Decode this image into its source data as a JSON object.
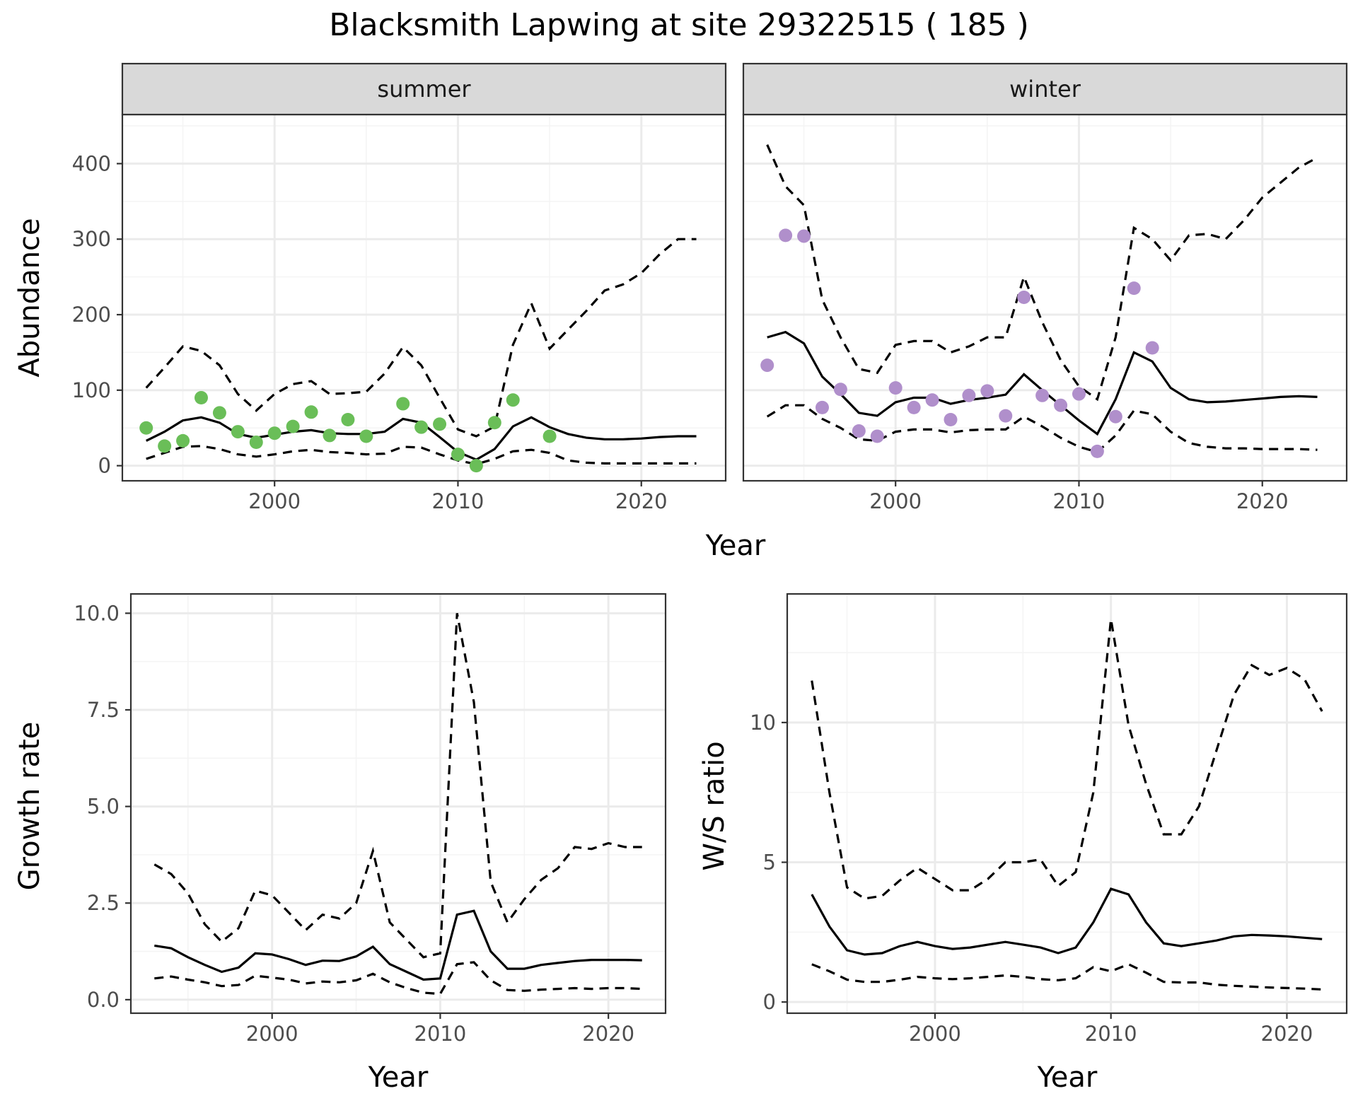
{
  "figure": {
    "title": "Blacksmith Lapwing at site 29322515 ( 185 )"
  },
  "colors": {
    "summer_points": "#6abe58",
    "winter_points": "#b08fcb",
    "lines": "#000000"
  },
  "chart_data": [
    {
      "id": "abundance",
      "type": "line",
      "facets": [
        "summer",
        "winter"
      ],
      "xlabel": "Year",
      "ylabel": "Abundance",
      "xlim": [
        1991.7,
        2024.6
      ],
      "ylim": [
        -20,
        465
      ],
      "x_ticks": [
        2000,
        2010,
        2020
      ],
      "y_ticks": [
        0,
        100,
        200,
        300,
        400
      ],
      "grid": true,
      "panels": [
        {
          "name": "summer",
          "x": [
            1993,
            1994,
            1995,
            1996,
            1997,
            1998,
            1999,
            2000,
            2001,
            2002,
            2003,
            2004,
            2005,
            2006,
            2007,
            2008,
            2009,
            2010,
            2011,
            2012,
            2013,
            2014,
            2015,
            2016,
            2017,
            2018,
            2019,
            2020,
            2021,
            2022,
            2023
          ],
          "estimate": [
            33,
            45,
            60,
            64,
            57,
            42,
            37,
            41,
            45,
            47,
            43,
            42,
            42,
            45,
            62,
            57,
            38,
            18,
            8,
            22,
            52,
            64,
            51,
            42,
            37,
            35,
            35,
            36,
            38,
            39,
            39
          ],
          "lower": [
            9,
            17,
            25,
            26,
            22,
            15,
            12,
            15,
            19,
            21,
            18,
            17,
            15,
            16,
            25,
            24,
            15,
            7,
            2,
            9,
            19,
            21,
            17,
            7,
            4,
            3,
            3,
            3,
            3,
            3,
            3
          ],
          "upper": [
            103,
            130,
            158,
            152,
            133,
            95,
            73,
            95,
            108,
            112,
            95,
            96,
            98,
            122,
            157,
            133,
            90,
            48,
            39,
            52,
            160,
            215,
            155,
            180,
            205,
            232,
            240,
            255,
            280,
            300,
            300
          ],
          "observed_x": [
            1993,
            1994,
            1995,
            1996,
            1997,
            1998,
            1999,
            2000,
            2001,
            2002,
            2003,
            2004,
            2005,
            2007,
            2008,
            2009,
            2010,
            2011,
            2012,
            2013,
            2015
          ],
          "observed_y": [
            50,
            26,
            33,
            90,
            70,
            45,
            31,
            43,
            52,
            71,
            40,
            61,
            39,
            82,
            51,
            55,
            15,
            0,
            57,
            87,
            39
          ]
        },
        {
          "name": "winter",
          "x": [
            1993,
            1994,
            1995,
            1996,
            1997,
            1998,
            1999,
            2000,
            2001,
            2002,
            2003,
            2004,
            2005,
            2006,
            2007,
            2008,
            2009,
            2010,
            2011,
            2012,
            2013,
            2014,
            2015,
            2016,
            2017,
            2018,
            2019,
            2020,
            2021,
            2022,
            2023
          ],
          "estimate": [
            170,
            177,
            162,
            118,
            95,
            70,
            66,
            84,
            90,
            90,
            82,
            87,
            90,
            94,
            121,
            100,
            80,
            60,
            42,
            88,
            150,
            138,
            103,
            88,
            84,
            85,
            87,
            89,
            91,
            92,
            91
          ],
          "lower": [
            65,
            80,
            80,
            62,
            50,
            35,
            33,
            45,
            48,
            48,
            44,
            47,
            48,
            48,
            65,
            52,
            37,
            25,
            18,
            40,
            73,
            68,
            45,
            30,
            25,
            23,
            23,
            22,
            22,
            22,
            21
          ],
          "upper": [
            425,
            370,
            345,
            220,
            170,
            128,
            123,
            160,
            165,
            165,
            150,
            158,
            170,
            170,
            250,
            190,
            140,
            105,
            88,
            170,
            315,
            300,
            272,
            305,
            307,
            300,
            325,
            355,
            375,
            395,
            408
          ],
          "observed_x": [
            1993,
            1994,
            1995,
            1996,
            1997,
            1998,
            1999,
            2000,
            2001,
            2002,
            2003,
            2004,
            2005,
            2006,
            2007,
            2008,
            2009,
            2010,
            2011,
            2012,
            2013,
            2014
          ],
          "observed_y": [
            133,
            305,
            304,
            77,
            101,
            46,
            39,
            103,
            77,
            87,
            61,
            93,
            99,
            66,
            223,
            93,
            80,
            95,
            19,
            65,
            235,
            156
          ]
        }
      ]
    },
    {
      "id": "growth",
      "type": "line",
      "xlabel": "Year",
      "ylabel": "Growth rate",
      "xlim": [
        1991.6,
        2023.4
      ],
      "ylim": [
        -0.35,
        10.5
      ],
      "x_ticks": [
        2000,
        2010,
        2020
      ],
      "y_ticks": [
        0.0,
        2.5,
        5.0,
        7.5,
        10.0
      ],
      "y_tick_labels": [
        "0.0",
        "2.5",
        "5.0",
        "7.5",
        "10.0"
      ],
      "grid": true,
      "x": [
        1993,
        1994,
        1995,
        1996,
        1997,
        1998,
        1999,
        2000,
        2001,
        2002,
        2003,
        2004,
        2005,
        2006,
        2007,
        2008,
        2009,
        2010,
        2011,
        2012,
        2013,
        2014,
        2015,
        2016,
        2017,
        2018,
        2019,
        2020,
        2021,
        2022
      ],
      "estimate": [
        1.4,
        1.33,
        1.1,
        0.9,
        0.72,
        0.83,
        1.2,
        1.17,
        1.05,
        0.9,
        1.01,
        1.0,
        1.12,
        1.37,
        0.92,
        0.72,
        0.52,
        0.55,
        2.2,
        2.3,
        1.25,
        0.8,
        0.8,
        0.9,
        0.95,
        1.0,
        1.03,
        1.03,
        1.03,
        1.02
      ],
      "lower": [
        0.55,
        0.6,
        0.52,
        0.45,
        0.35,
        0.38,
        0.62,
        0.57,
        0.52,
        0.42,
        0.47,
        0.45,
        0.5,
        0.67,
        0.45,
        0.3,
        0.18,
        0.15,
        0.92,
        0.97,
        0.5,
        0.25,
        0.23,
        0.26,
        0.28,
        0.3,
        0.28,
        0.3,
        0.3,
        0.28
      ],
      "upper": [
        3.5,
        3.25,
        2.75,
        1.95,
        1.5,
        1.85,
        2.82,
        2.7,
        2.25,
        1.8,
        2.2,
        2.1,
        2.5,
        3.85,
        2.0,
        1.55,
        1.1,
        1.2,
        10.0,
        7.7,
        3.05,
        2.0,
        2.6,
        3.1,
        3.4,
        3.95,
        3.9,
        4.05,
        3.95,
        3.95
      ]
    },
    {
      "id": "ws_ratio",
      "type": "line",
      "xlabel": "Year",
      "ylabel": "W/S ratio",
      "xlim": [
        1991.6,
        2023.4
      ],
      "ylim": [
        -0.4,
        14.6
      ],
      "x_ticks": [
        2000,
        2010,
        2020
      ],
      "y_ticks": [
        0,
        5,
        10
      ],
      "grid": true,
      "x": [
        1993,
        1994,
        1995,
        1996,
        1997,
        1998,
        1999,
        2000,
        2001,
        2002,
        2003,
        2004,
        2005,
        2006,
        2007,
        2008,
        2009,
        2010,
        2011,
        2012,
        2013,
        2014,
        2015,
        2016,
        2017,
        2018,
        2019,
        2020,
        2021,
        2022
      ],
      "estimate": [
        3.85,
        2.7,
        1.85,
        1.7,
        1.75,
        2.0,
        2.15,
        2.0,
        1.9,
        1.95,
        2.05,
        2.15,
        2.05,
        1.95,
        1.75,
        1.95,
        2.85,
        4.05,
        3.85,
        2.85,
        2.1,
        2.0,
        2.1,
        2.2,
        2.35,
        2.4,
        2.38,
        2.35,
        2.3,
        2.25
      ],
      "lower": [
        1.35,
        1.1,
        0.8,
        0.72,
        0.72,
        0.8,
        0.9,
        0.85,
        0.82,
        0.85,
        0.9,
        0.95,
        0.9,
        0.82,
        0.78,
        0.85,
        1.25,
        1.1,
        1.35,
        1.05,
        0.72,
        0.7,
        0.7,
        0.62,
        0.58,
        0.55,
        0.52,
        0.5,
        0.48,
        0.45
      ],
      "upper": [
        11.5,
        7.5,
        4.1,
        3.7,
        3.8,
        4.35,
        4.8,
        4.4,
        4.0,
        4.0,
        4.4,
        5.0,
        5.0,
        5.1,
        4.15,
        4.65,
        7.5,
        13.7,
        9.9,
        7.8,
        6.0,
        6.0,
        7.0,
        9.0,
        11.0,
        12.05,
        11.7,
        11.95,
        11.55,
        10.4
      ]
    }
  ]
}
